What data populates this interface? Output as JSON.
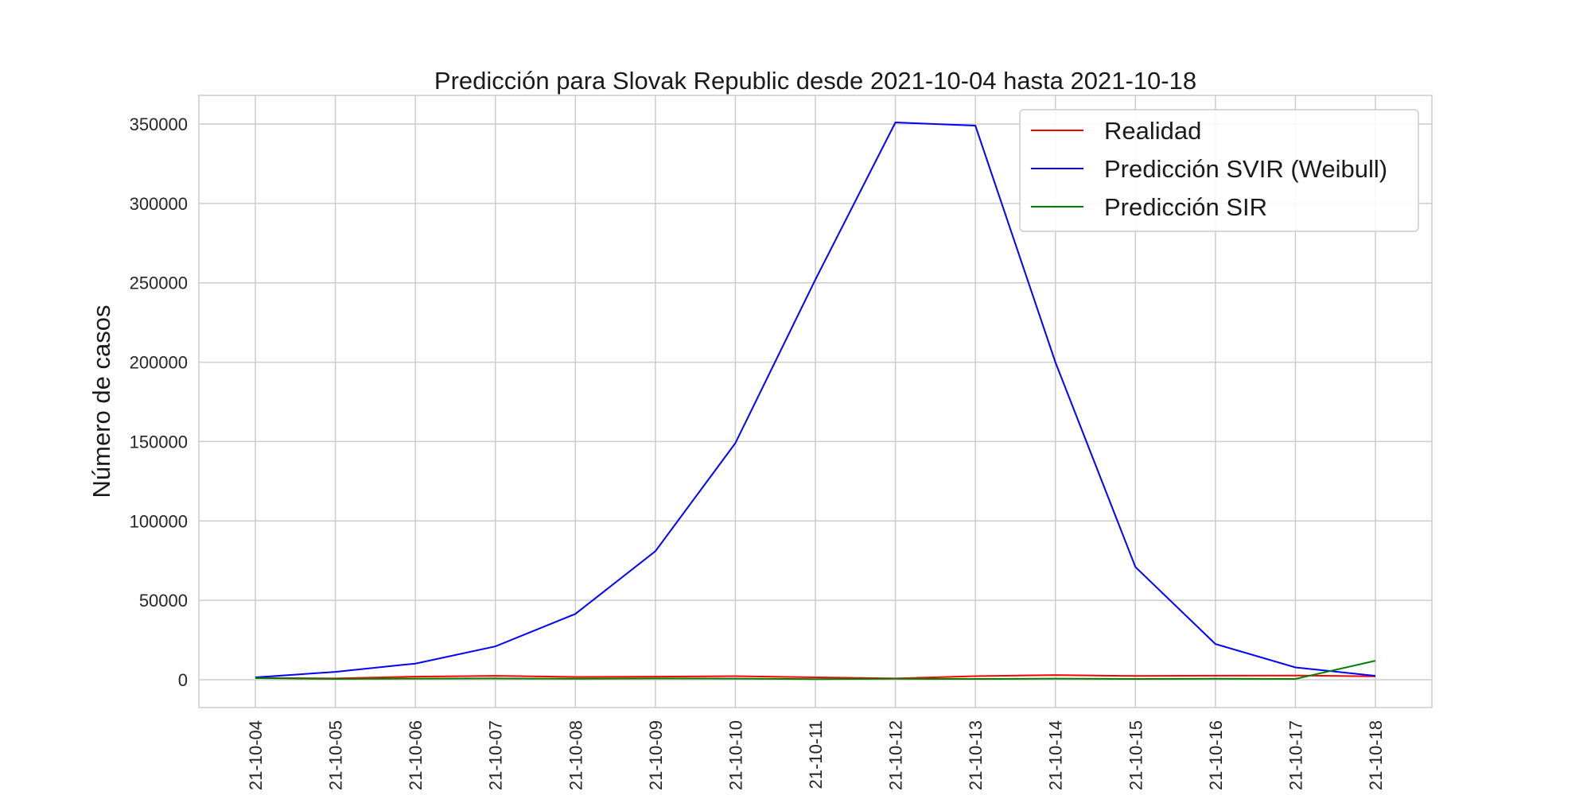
{
  "chart_data": {
    "type": "line",
    "title": "Predicción para Slovak Republic desde 2021-10-04 hasta 2021-10-18",
    "xlabel": "",
    "ylabel": "Número de casos",
    "x": [
      "2021-10-04",
      "2021-10-05",
      "2021-10-06",
      "2021-10-07",
      "2021-10-08",
      "2021-10-09",
      "2021-10-10",
      "2021-10-11",
      "2021-10-12",
      "2021-10-13",
      "2021-10-14",
      "2021-10-15",
      "2021-10-16",
      "2021-10-17",
      "2021-10-18"
    ],
    "x_tick_labels": [
      "21-10-04",
      "21-10-05",
      "21-10-06",
      "21-10-07",
      "21-10-08",
      "21-10-09",
      "21-10-10",
      "21-10-11",
      "21-10-12",
      "21-10-13",
      "21-10-14",
      "21-10-15",
      "21-10-16",
      "21-10-17",
      "21-10-18"
    ],
    "yticks": [
      0,
      50000,
      100000,
      150000,
      200000,
      250000,
      300000,
      350000
    ],
    "ylim": [
      -17500,
      368000
    ],
    "grid": true,
    "legend_position": "top-right",
    "series": [
      {
        "name": "Realidad",
        "color": "#ff0000",
        "values": [
          1200,
          800,
          2000,
          2500,
          1800,
          2000,
          2300,
          1500,
          800,
          2300,
          3000,
          2400,
          2600,
          2700,
          2200
        ]
      },
      {
        "name": "Predicción SVIR (Weibull)",
        "color": "#0000ff",
        "values": [
          1500,
          5000,
          10200,
          21000,
          41500,
          81000,
          149000,
          252000,
          351000,
          349000,
          200000,
          71000,
          22500,
          7800,
          2500
        ]
      },
      {
        "name": "Predicción SIR",
        "color": "#008000",
        "values": [
          1000,
          500,
          700,
          800,
          600,
          800,
          700,
          400,
          600,
          500,
          700,
          500,
          600,
          500,
          12000
        ]
      }
    ]
  }
}
